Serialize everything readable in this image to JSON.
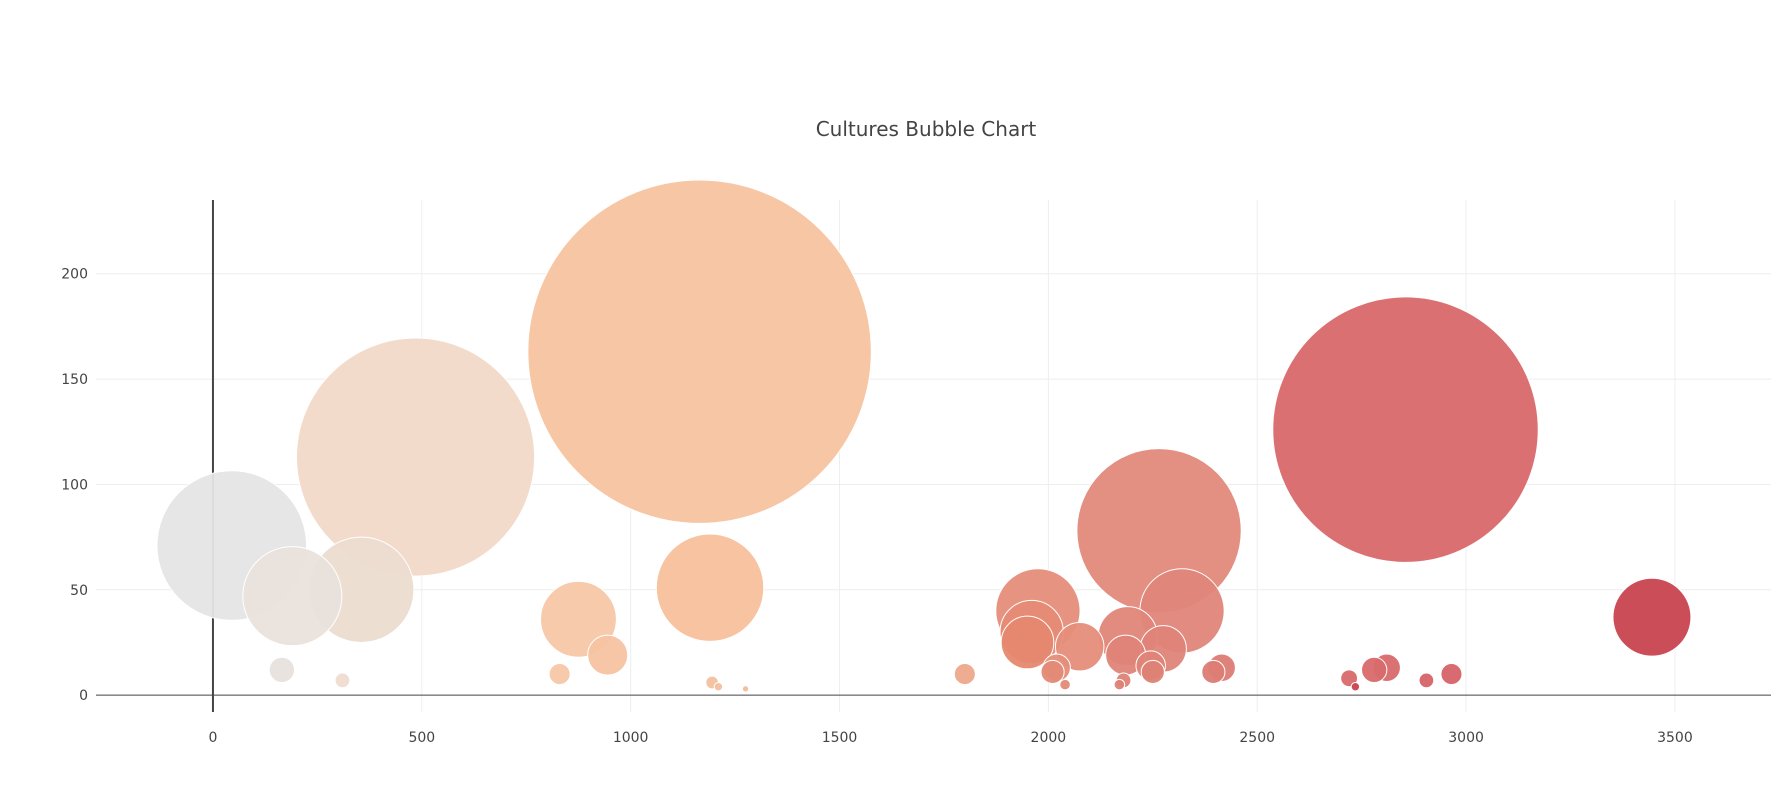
{
  "chart_data": {
    "type": "scatter",
    "title": "Cultures Bubble Chart",
    "xlabel": "",
    "ylabel": "",
    "xlim": [
      -280,
      3730
    ],
    "ylim": [
      -8,
      235
    ],
    "xticks": [
      0,
      500,
      1000,
      1500,
      2000,
      2500,
      3000,
      3500
    ],
    "yticks": [
      0,
      50,
      100,
      150,
      200
    ],
    "grid": true,
    "points": [
      {
        "x": 45,
        "y": 71,
        "size": 71,
        "color": "#e5e5e5"
      },
      {
        "x": 190,
        "y": 47,
        "size": 47,
        "color": "#e9e1dc"
      },
      {
        "x": 355,
        "y": 50,
        "size": 50,
        "color": "#ecdcd0"
      },
      {
        "x": 485,
        "y": 113,
        "size": 113,
        "color": "#f2d9c9"
      },
      {
        "x": 165,
        "y": 12,
        "size": 12,
        "color": "#e7e1dd"
      },
      {
        "x": 310,
        "y": 7,
        "size": 7,
        "color": "#eedccf"
      },
      {
        "x": 1165,
        "y": 163,
        "size": 163,
        "color": "#f7c39f"
      },
      {
        "x": 1190,
        "y": 51,
        "size": 51,
        "color": "#f7c09b"
      },
      {
        "x": 875,
        "y": 36,
        "size": 36,
        "color": "#f6c7a6"
      },
      {
        "x": 945,
        "y": 19,
        "size": 19,
        "color": "#f5c3a2"
      },
      {
        "x": 830,
        "y": 10,
        "size": 10,
        "color": "#f5c7a7"
      },
      {
        "x": 1195,
        "y": 6,
        "size": 6,
        "color": "#f2c09e"
      },
      {
        "x": 1210,
        "y": 4,
        "size": 4,
        "color": "#f2c09e"
      },
      {
        "x": 1275,
        "y": 3,
        "size": 3,
        "color": "#f2bc97"
      },
      {
        "x": 1800,
        "y": 10,
        "size": 10,
        "color": "#eda88a"
      },
      {
        "x": 1975,
        "y": 40,
        "size": 40,
        "color": "#e58e7a"
      },
      {
        "x": 1960,
        "y": 30,
        "size": 30,
        "color": "#e68a74"
      },
      {
        "x": 1950,
        "y": 25,
        "size": 25,
        "color": "#e6886f"
      },
      {
        "x": 2075,
        "y": 23,
        "size": 23,
        "color": "#e58e7a"
      },
      {
        "x": 2020,
        "y": 13,
        "size": 13,
        "color": "#e58e7a"
      },
      {
        "x": 2010,
        "y": 11,
        "size": 11,
        "color": "#e48a76"
      },
      {
        "x": 2040,
        "y": 5,
        "size": 5,
        "color": "#e48a76"
      },
      {
        "x": 2265,
        "y": 78,
        "size": 78,
        "color": "#e2897b"
      },
      {
        "x": 2320,
        "y": 40,
        "size": 40,
        "color": "#e0867a"
      },
      {
        "x": 2190,
        "y": 28,
        "size": 28,
        "color": "#e08679"
      },
      {
        "x": 2275,
        "y": 22,
        "size": 22,
        "color": "#df8478"
      },
      {
        "x": 2185,
        "y": 19,
        "size": 19,
        "color": "#df8478"
      },
      {
        "x": 2245,
        "y": 14,
        "size": 14,
        "color": "#df8478"
      },
      {
        "x": 2250,
        "y": 11,
        "size": 11,
        "color": "#de8276"
      },
      {
        "x": 2180,
        "y": 7,
        "size": 7,
        "color": "#de8276"
      },
      {
        "x": 2170,
        "y": 5,
        "size": 5,
        "color": "#de8276"
      },
      {
        "x": 2415,
        "y": 13,
        "size": 13,
        "color": "#dc7c74"
      },
      {
        "x": 2395,
        "y": 11,
        "size": 11,
        "color": "#dc7c74"
      },
      {
        "x": 2855,
        "y": 126,
        "size": 126,
        "color": "#d9686b"
      },
      {
        "x": 2810,
        "y": 13,
        "size": 13,
        "color": "#d86a6c"
      },
      {
        "x": 2780,
        "y": 12,
        "size": 12,
        "color": "#d86a6c"
      },
      {
        "x": 2720,
        "y": 8,
        "size": 8,
        "color": "#d86a6c"
      },
      {
        "x": 2965,
        "y": 10,
        "size": 10,
        "color": "#d66368"
      },
      {
        "x": 2905,
        "y": 7,
        "size": 7,
        "color": "#d66368"
      },
      {
        "x": 2735,
        "y": 4,
        "size": 4,
        "color": "#c9424d"
      },
      {
        "x": 3445,
        "y": 37,
        "size": 37,
        "color": "#c8434f"
      }
    ]
  }
}
